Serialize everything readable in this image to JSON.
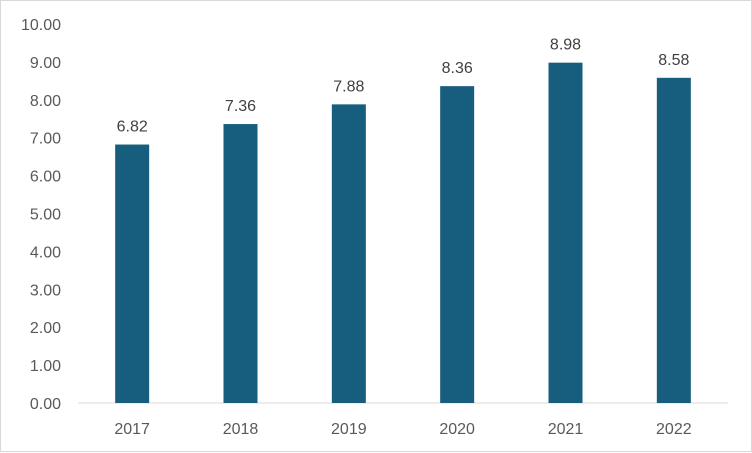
{
  "chart_data": {
    "type": "bar",
    "title": "",
    "xlabel": "",
    "ylabel": "",
    "categories": [
      "2017",
      "2018",
      "2019",
      "2020",
      "2021",
      "2022"
    ],
    "values": [
      6.82,
      7.36,
      7.88,
      8.36,
      8.98,
      8.58
    ],
    "data_labels": [
      "6.82",
      "7.36",
      "7.88",
      "8.36",
      "8.98",
      "8.58"
    ],
    "ylim": [
      0,
      10
    ],
    "y_ticks": [
      "0.00",
      "1.00",
      "2.00",
      "3.00",
      "4.00",
      "5.00",
      "6.00",
      "7.00",
      "8.00",
      "9.00",
      "10.00"
    ],
    "grid": false,
    "legend": "none",
    "bar_color": "#175E7E",
    "axis_color": "#d9d9d9"
  }
}
